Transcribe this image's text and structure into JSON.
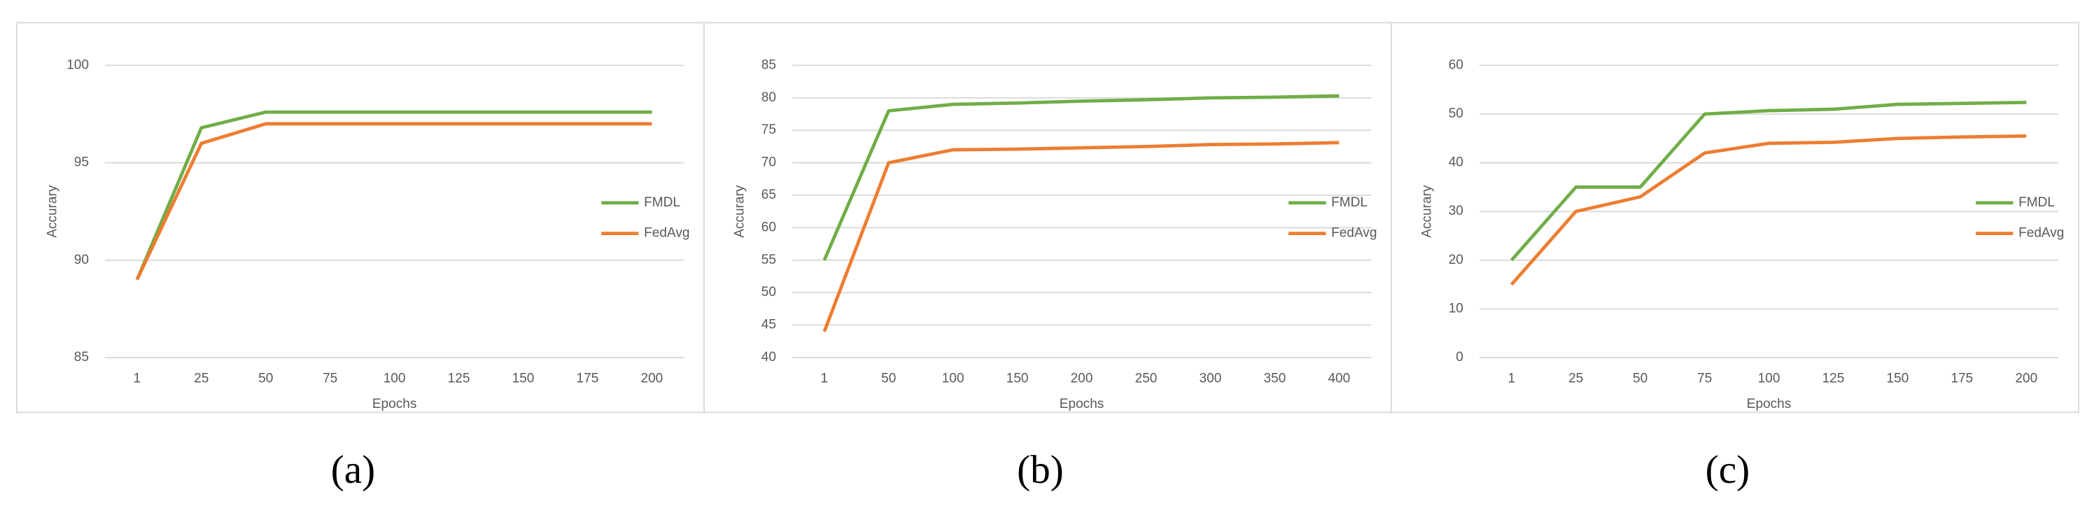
{
  "chart_data": [
    {
      "type": "line",
      "caption": "(a)",
      "x_label": "Epochs",
      "y_label": "Accurary",
      "categories": [
        "1",
        "25",
        "50",
        "75",
        "100",
        "125",
        "150",
        "175",
        "200"
      ],
      "ylim": [
        85,
        100
      ],
      "yticks": [
        85,
        90,
        95,
        100
      ],
      "grid": true,
      "series": [
        {
          "name": "FMDL",
          "color": "#70ad47",
          "values": [
            89,
            96.8,
            97.6,
            97.6,
            97.6,
            97.6,
            97.6,
            97.6,
            97.6
          ]
        },
        {
          "name": "FedAvg",
          "color": "#ed7d31",
          "values": [
            89,
            96,
            97,
            97,
            97,
            97,
            97,
            97,
            97
          ]
        }
      ]
    },
    {
      "type": "line",
      "caption": "(b)",
      "x_label": "Epochs",
      "y_label": "Accurary",
      "categories": [
        "1",
        "50",
        "100",
        "150",
        "200",
        "250",
        "300",
        "350",
        "400"
      ],
      "ylim": [
        40,
        85
      ],
      "yticks": [
        40,
        45,
        50,
        55,
        60,
        65,
        70,
        75,
        80,
        85
      ],
      "grid": true,
      "series": [
        {
          "name": "FMDL",
          "color": "#70ad47",
          "values": [
            55,
            78,
            79,
            79.2,
            79.5,
            79.7,
            80,
            80.1,
            80.3
          ]
        },
        {
          "name": "FedAvg",
          "color": "#ed7d31",
          "values": [
            44,
            70,
            72,
            72.1,
            72.3,
            72.5,
            72.8,
            72.9,
            73.1
          ]
        }
      ]
    },
    {
      "type": "line",
      "caption": "(c)",
      "x_label": "Epochs",
      "y_label": "Accurary",
      "categories": [
        "1",
        "25",
        "50",
        "75",
        "100",
        "125",
        "150",
        "175",
        "200"
      ],
      "ylim": [
        0,
        60
      ],
      "yticks": [
        0,
        10,
        20,
        30,
        40,
        50,
        60
      ],
      "grid": true,
      "series": [
        {
          "name": "FMDL",
          "color": "#70ad47",
          "values": [
            20,
            35,
            35,
            50,
            50.7,
            51,
            52,
            52.2,
            52.4
          ]
        },
        {
          "name": "FedAvg",
          "color": "#ed7d31",
          "values": [
            15,
            30,
            33,
            42,
            44,
            44.2,
            45,
            45.3,
            45.5
          ]
        }
      ]
    }
  ]
}
